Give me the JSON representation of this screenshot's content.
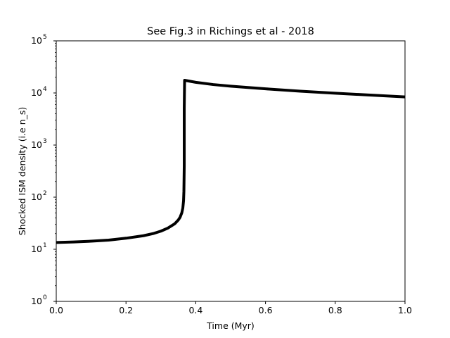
{
  "chart_data": {
    "type": "line",
    "title": "See Fig.3 in Richings et al - 2018",
    "xlabel": "Time (Myr)",
    "ylabel": "Shocked ISM density (i.e n_s)",
    "xlim": [
      0.0,
      1.0
    ],
    "ylim": [
      1,
      100000
    ],
    "yscale": "log",
    "grid": false,
    "x_ticks": [
      {
        "value": 0.0,
        "label": "0.0"
      },
      {
        "value": 0.2,
        "label": "0.2"
      },
      {
        "value": 0.4,
        "label": "0.4"
      },
      {
        "value": 0.6,
        "label": "0.6"
      },
      {
        "value": 0.8,
        "label": "0.8"
      },
      {
        "value": 1.0,
        "label": "1.0"
      }
    ],
    "y_ticks": [
      {
        "value": 1,
        "base": "10",
        "exp": "0"
      },
      {
        "value": 10,
        "base": "10",
        "exp": "1"
      },
      {
        "value": 100,
        "base": "10",
        "exp": "2"
      },
      {
        "value": 1000,
        "base": "10",
        "exp": "3"
      },
      {
        "value": 10000,
        "base": "10",
        "exp": "4"
      },
      {
        "value": 100000,
        "base": "10",
        "exp": "5"
      }
    ],
    "series": [
      {
        "color": "#000000",
        "x": [
          0.0,
          0.05,
          0.1,
          0.15,
          0.2,
          0.25,
          0.28,
          0.3,
          0.32,
          0.34,
          0.35,
          0.355,
          0.36,
          0.363,
          0.365,
          0.366,
          0.367,
          0.367,
          0.368,
          0.4,
          0.45,
          0.5,
          0.6,
          0.7,
          0.8,
          0.9,
          1.0
        ],
        "y": [
          13.5,
          13.8,
          14.3,
          15.0,
          16.3,
          18.2,
          20.2,
          22.3,
          25.5,
          31.0,
          36.5,
          41.0,
          50.0,
          62.0,
          85.0,
          130.0,
          400.0,
          5000.0,
          17500.0,
          16000.0,
          14500.0,
          13500.0,
          12000.0,
          10800.0,
          9900.0,
          9100.0,
          8400.0
        ]
      }
    ]
  }
}
